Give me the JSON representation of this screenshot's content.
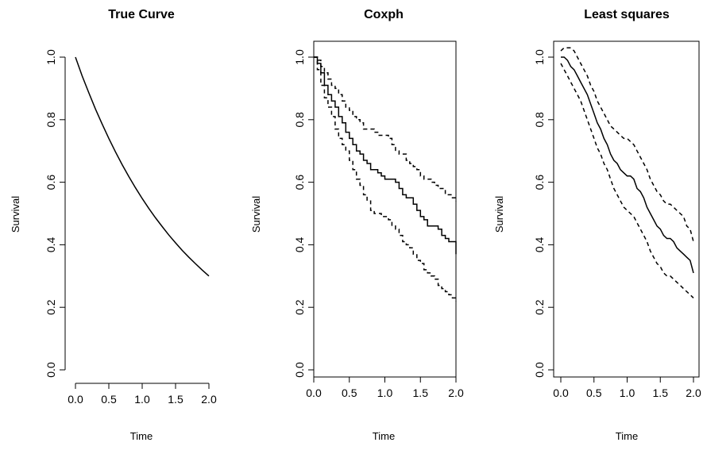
{
  "panels": [
    {
      "title": "True Curve",
      "xlabel": "Time",
      "ylabel": "Survival",
      "xticks": [
        "0.0",
        "0.5",
        "1.0",
        "1.5",
        "2.0"
      ],
      "yticks": [
        "0.0",
        "0.2",
        "0.4",
        "0.6",
        "0.8",
        "1.0"
      ]
    },
    {
      "title": "Coxph",
      "xlabel": "Time",
      "ylabel": "Survival",
      "xticks": [
        "0.0",
        "0.5",
        "1.0",
        "1.5",
        "2.0"
      ],
      "yticks": [
        "0.0",
        "0.2",
        "0.4",
        "0.6",
        "0.8",
        "1.0"
      ]
    },
    {
      "title": "Least squares",
      "xlabel": "Time",
      "ylabel": "Survival",
      "xticks": [
        "0.0",
        "0.5",
        "1.0",
        "1.5",
        "2.0"
      ],
      "yticks": [
        "0.0",
        "0.2",
        "0.4",
        "0.6",
        "0.8",
        "1.0"
      ]
    }
  ],
  "chart_data": [
    {
      "type": "line",
      "title": "True Curve",
      "xlabel": "Time",
      "ylabel": "Survival",
      "xlim": [
        0,
        2
      ],
      "ylim": [
        0,
        1
      ],
      "box": false,
      "series": [
        {
          "style": "solid",
          "x": [
            0,
            0.1,
            0.2,
            0.3,
            0.4,
            0.5,
            0.6,
            0.7,
            0.8,
            0.9,
            1.0,
            1.1,
            1.2,
            1.3,
            1.4,
            1.5,
            1.6,
            1.7,
            1.8,
            1.9,
            2.0
          ],
          "y": [
            1.0,
            0.94,
            0.886,
            0.834,
            0.786,
            0.74,
            0.697,
            0.656,
            0.618,
            0.582,
            0.548,
            0.516,
            0.486,
            0.458,
            0.431,
            0.406,
            0.382,
            0.36,
            0.339,
            0.319,
            0.3
          ]
        }
      ]
    },
    {
      "type": "line",
      "title": "Coxph",
      "xlabel": "Time",
      "ylabel": "Survival",
      "xlim": [
        0,
        2
      ],
      "ylim": [
        0,
        1
      ],
      "box": true,
      "step": true,
      "series": [
        {
          "style": "solid",
          "x": [
            0,
            0.05,
            0.1,
            0.15,
            0.2,
            0.25,
            0.3,
            0.35,
            0.4,
            0.45,
            0.5,
            0.55,
            0.6,
            0.65,
            0.7,
            0.75,
            0.8,
            0.85,
            0.9,
            0.95,
            1.0,
            1.05,
            1.1,
            1.15,
            1.2,
            1.25,
            1.3,
            1.35,
            1.4,
            1.45,
            1.5,
            1.55,
            1.6,
            1.65,
            1.7,
            1.75,
            1.8,
            1.85,
            1.9,
            1.95,
            2.0
          ],
          "y": [
            1.0,
            0.98,
            0.95,
            0.91,
            0.88,
            0.86,
            0.84,
            0.81,
            0.79,
            0.76,
            0.74,
            0.72,
            0.7,
            0.69,
            0.67,
            0.66,
            0.64,
            0.64,
            0.63,
            0.62,
            0.61,
            0.61,
            0.61,
            0.6,
            0.58,
            0.56,
            0.55,
            0.55,
            0.53,
            0.51,
            0.49,
            0.48,
            0.46,
            0.46,
            0.46,
            0.45,
            0.43,
            0.42,
            0.41,
            0.41,
            0.37
          ]
        },
        {
          "style": "dashed",
          "x": [
            0,
            0.05,
            0.1,
            0.15,
            0.2,
            0.25,
            0.3,
            0.35,
            0.4,
            0.45,
            0.5,
            0.55,
            0.6,
            0.65,
            0.7,
            0.75,
            0.8,
            0.85,
            0.9,
            0.95,
            1.0,
            1.05,
            1.1,
            1.15,
            1.2,
            1.25,
            1.3,
            1.35,
            1.4,
            1.45,
            1.5,
            1.55,
            1.6,
            1.65,
            1.7,
            1.75,
            1.8,
            1.85,
            1.9,
            1.95,
            2.0
          ],
          "y": [
            1.0,
            0.99,
            0.97,
            0.95,
            0.93,
            0.91,
            0.9,
            0.88,
            0.86,
            0.84,
            0.83,
            0.81,
            0.8,
            0.79,
            0.77,
            0.77,
            0.77,
            0.76,
            0.75,
            0.75,
            0.75,
            0.74,
            0.72,
            0.7,
            0.69,
            0.69,
            0.67,
            0.66,
            0.65,
            0.64,
            0.62,
            0.61,
            0.61,
            0.6,
            0.59,
            0.58,
            0.58,
            0.56,
            0.56,
            0.55,
            0.54
          ]
        },
        {
          "style": "dashed",
          "x": [
            0,
            0.05,
            0.1,
            0.15,
            0.2,
            0.25,
            0.3,
            0.35,
            0.4,
            0.45,
            0.5,
            0.55,
            0.6,
            0.65,
            0.7,
            0.75,
            0.8,
            0.85,
            0.9,
            0.95,
            1.0,
            1.05,
            1.1,
            1.15,
            1.2,
            1.25,
            1.3,
            1.35,
            1.4,
            1.45,
            1.5,
            1.55,
            1.6,
            1.65,
            1.7,
            1.75,
            1.8,
            1.85,
            1.9,
            1.95,
            2.0
          ],
          "y": [
            1.0,
            0.96,
            0.91,
            0.87,
            0.84,
            0.81,
            0.77,
            0.74,
            0.72,
            0.7,
            0.67,
            0.64,
            0.61,
            0.59,
            0.56,
            0.54,
            0.51,
            0.5,
            0.5,
            0.49,
            0.49,
            0.48,
            0.46,
            0.45,
            0.43,
            0.41,
            0.4,
            0.39,
            0.37,
            0.35,
            0.34,
            0.32,
            0.31,
            0.3,
            0.29,
            0.27,
            0.26,
            0.25,
            0.24,
            0.23,
            0.22
          ]
        }
      ]
    },
    {
      "type": "line",
      "title": "Least squares",
      "xlabel": "Time",
      "ylabel": "Survival",
      "xlim": [
        0,
        2
      ],
      "ylim": [
        0,
        1
      ],
      "box": true,
      "series": [
        {
          "style": "solid",
          "x": [
            0,
            0.05,
            0.1,
            0.15,
            0.2,
            0.25,
            0.3,
            0.35,
            0.4,
            0.45,
            0.5,
            0.55,
            0.6,
            0.65,
            0.7,
            0.75,
            0.8,
            0.85,
            0.9,
            0.95,
            1.0,
            1.05,
            1.1,
            1.15,
            1.2,
            1.25,
            1.3,
            1.35,
            1.4,
            1.45,
            1.5,
            1.55,
            1.6,
            1.65,
            1.7,
            1.75,
            1.8,
            1.85,
            1.9,
            1.95,
            2.0
          ],
          "y": [
            1.0,
            1.0,
            0.99,
            0.97,
            0.96,
            0.94,
            0.92,
            0.9,
            0.88,
            0.85,
            0.82,
            0.79,
            0.77,
            0.74,
            0.72,
            0.69,
            0.67,
            0.66,
            0.64,
            0.63,
            0.62,
            0.62,
            0.61,
            0.58,
            0.57,
            0.55,
            0.52,
            0.5,
            0.48,
            0.46,
            0.45,
            0.43,
            0.42,
            0.42,
            0.41,
            0.39,
            0.38,
            0.37,
            0.36,
            0.35,
            0.31
          ]
        },
        {
          "style": "dashed",
          "x": [
            0,
            0.05,
            0.1,
            0.15,
            0.2,
            0.25,
            0.3,
            0.35,
            0.4,
            0.45,
            0.5,
            0.55,
            0.6,
            0.65,
            0.7,
            0.75,
            0.8,
            0.85,
            0.9,
            0.95,
            1.0,
            1.05,
            1.1,
            1.15,
            1.2,
            1.25,
            1.3,
            1.35,
            1.4,
            1.45,
            1.5,
            1.55,
            1.6,
            1.65,
            1.7,
            1.75,
            1.8,
            1.85,
            1.9,
            1.95,
            2.0
          ],
          "y": [
            1.02,
            1.03,
            1.03,
            1.03,
            1.02,
            1.0,
            0.98,
            0.96,
            0.94,
            0.91,
            0.89,
            0.86,
            0.84,
            0.82,
            0.8,
            0.78,
            0.77,
            0.76,
            0.75,
            0.74,
            0.74,
            0.73,
            0.72,
            0.7,
            0.68,
            0.66,
            0.64,
            0.61,
            0.59,
            0.57,
            0.56,
            0.54,
            0.53,
            0.53,
            0.52,
            0.51,
            0.5,
            0.49,
            0.46,
            0.45,
            0.41
          ]
        },
        {
          "style": "dashed",
          "x": [
            0,
            0.05,
            0.1,
            0.15,
            0.2,
            0.25,
            0.3,
            0.35,
            0.4,
            0.45,
            0.5,
            0.55,
            0.6,
            0.65,
            0.7,
            0.75,
            0.8,
            0.85,
            0.9,
            0.95,
            1.0,
            1.05,
            1.1,
            1.15,
            1.2,
            1.25,
            1.3,
            1.35,
            1.4,
            1.45,
            1.5,
            1.55,
            1.6,
            1.65,
            1.7,
            1.75,
            1.8,
            1.85,
            1.9,
            1.95,
            2.0
          ],
          "y": [
            0.98,
            0.96,
            0.94,
            0.92,
            0.9,
            0.88,
            0.86,
            0.83,
            0.8,
            0.77,
            0.74,
            0.71,
            0.69,
            0.66,
            0.64,
            0.61,
            0.58,
            0.56,
            0.54,
            0.52,
            0.51,
            0.5,
            0.49,
            0.47,
            0.45,
            0.43,
            0.41,
            0.38,
            0.36,
            0.34,
            0.33,
            0.31,
            0.3,
            0.3,
            0.29,
            0.28,
            0.27,
            0.26,
            0.25,
            0.24,
            0.23
          ]
        }
      ]
    }
  ]
}
